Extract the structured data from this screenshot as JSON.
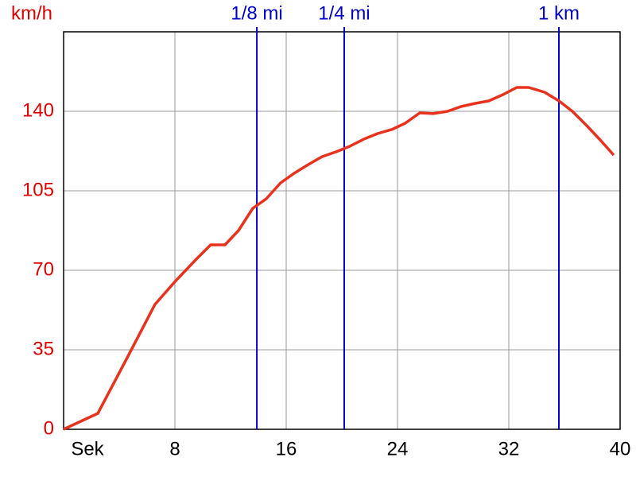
{
  "chart_data": {
    "type": "line",
    "y_label": "km/h",
    "x": [
      0,
      2.46,
      4.57,
      6.57,
      8,
      9.6,
      10.57,
      11.6,
      12.57,
      13.6,
      14.57,
      15.6,
      16.57,
      17.6,
      18.57,
      19.6,
      20.57,
      21.6,
      22.57,
      23.6,
      24.57,
      25.6,
      26.57,
      27.6,
      28.57,
      29.6,
      30.57,
      31.6,
      32.57,
      33.43,
      34.57,
      35.6,
      36.57,
      37.6,
      38.57,
      39.54
    ],
    "values": [
      0,
      7,
      31.5,
      55,
      65,
      75.3,
      81.2,
      81.2,
      87.5,
      97.3,
      101.5,
      108.5,
      112.7,
      116.6,
      120,
      122.2,
      124.6,
      127.8,
      130.2,
      132,
      134.8,
      139.3,
      139,
      140,
      142.1,
      143.5,
      144.6,
      147.4,
      150.5,
      150.5,
      148.4,
      144.6,
      140,
      133.7,
      127.4,
      120.7
    ],
    "color": "#e8321e",
    "xlim": [
      0,
      40
    ],
    "xticks": [
      {
        "value": 0,
        "label": "Sek"
      },
      8,
      16,
      24,
      32,
      40
    ],
    "ylim": [
      0,
      175
    ],
    "yticks": [
      0,
      35,
      70,
      105,
      140
    ],
    "grid": true,
    "markers": [
      {
        "label": "1/8 mi",
        "x": 13.89
      },
      {
        "label": "1/4 mi",
        "x": 20.17
      },
      {
        "label": "1 km",
        "x": 35.6
      }
    ],
    "marker_color": "#0000cc"
  }
}
